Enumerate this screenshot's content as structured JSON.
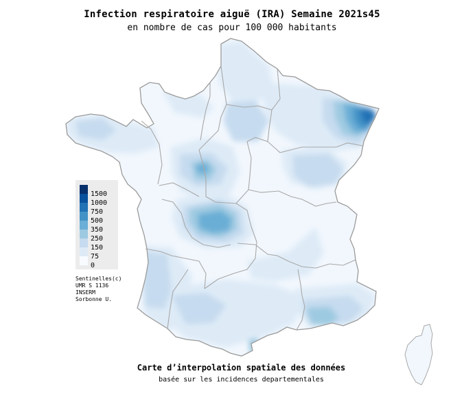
{
  "header": {
    "title": "Infection respiratoire aiguë (IRA) Semaine 2021s45",
    "subtitle": "en nombre de cas pour 100 000 habitants"
  },
  "legend": {
    "items": [
      {
        "label": "1500",
        "color": "#08306b"
      },
      {
        "label": "1000",
        "color": "#08519c"
      },
      {
        "label": "750",
        "color": "#2171b5"
      },
      {
        "label": "500",
        "color": "#4292c6"
      },
      {
        "label": "350",
        "color": "#6baed6"
      },
      {
        "label": "250",
        "color": "#9ecae1"
      },
      {
        "label": "150",
        "color": "#c6dbef"
      },
      {
        "label": "75",
        "color": "#deebf7"
      },
      {
        "label": "0",
        "color": "#f7fbff"
      }
    ]
  },
  "credits": {
    "line1": "Sentinelles(c)",
    "line2": "UMR S 1136",
    "line3": "INSERM",
    "line4": "Sorbonne U."
  },
  "footer": {
    "title": "Carte d’interpolation spatiale des données",
    "subtitle": "basée sur les incidences departementales"
  },
  "colors": {
    "boundary": "#a8a8a8",
    "base": "#f2f7fd"
  }
}
